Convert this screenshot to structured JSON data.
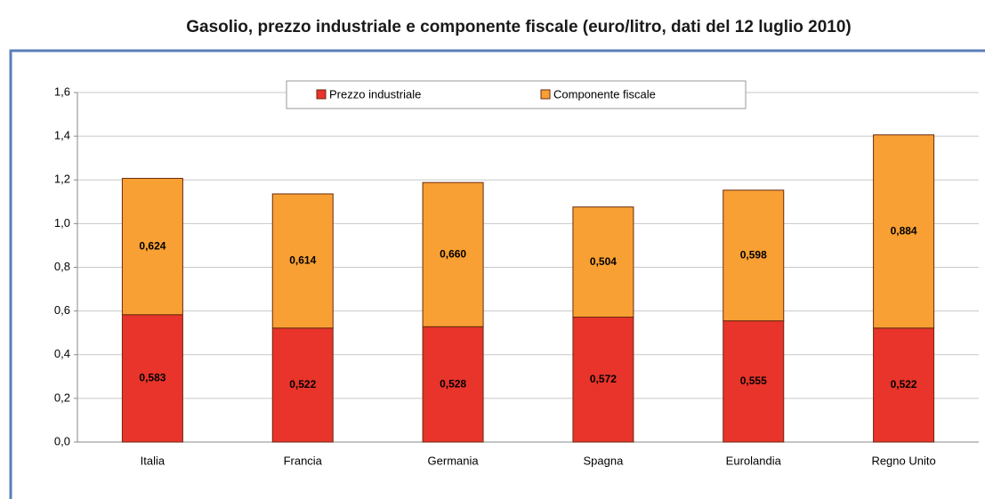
{
  "chart_data": {
    "type": "stacked-bar",
    "title": "Gasolio, prezzo industriale e componente fiscale (euro/litro, dati del 12 luglio 2010)",
    "categories": [
      "Italia",
      "Francia",
      "Germania",
      "Spagna",
      "Eurolandia",
      "Regno Unito"
    ],
    "series": [
      {
        "name": "Prezzo industriale",
        "color": "#e8342b",
        "values": [
          0.583,
          0.522,
          0.528,
          0.572,
          0.555,
          0.522
        ],
        "value_labels": [
          "0,583",
          "0,522",
          "0,528",
          "0,572",
          "0,555",
          "0,522"
        ]
      },
      {
        "name": "Componente fiscale",
        "color": "#f8a033",
        "values": [
          0.624,
          0.614,
          0.66,
          0.504,
          0.598,
          0.884
        ],
        "value_labels": [
          "0,624",
          "0,614",
          "0,660",
          "0,504",
          "0,598",
          "0,884"
        ]
      }
    ],
    "ylim": [
      0,
      1.6
    ],
    "yticks": [
      {
        "value": 0,
        "label": "0,0"
      },
      {
        "value": 0.2,
        "label": "0,2"
      },
      {
        "value": 0.4,
        "label": "0,4"
      },
      {
        "value": 0.6,
        "label": "0,6"
      },
      {
        "value": 0.8,
        "label": "0,8"
      },
      {
        "value": 1.0,
        "label": "1,0"
      },
      {
        "value": 1.2,
        "label": "1,2"
      },
      {
        "value": 1.4,
        "label": "1,4"
      },
      {
        "value": 1.6,
        "label": "1,6"
      }
    ],
    "grid": true,
    "legend": "top"
  }
}
